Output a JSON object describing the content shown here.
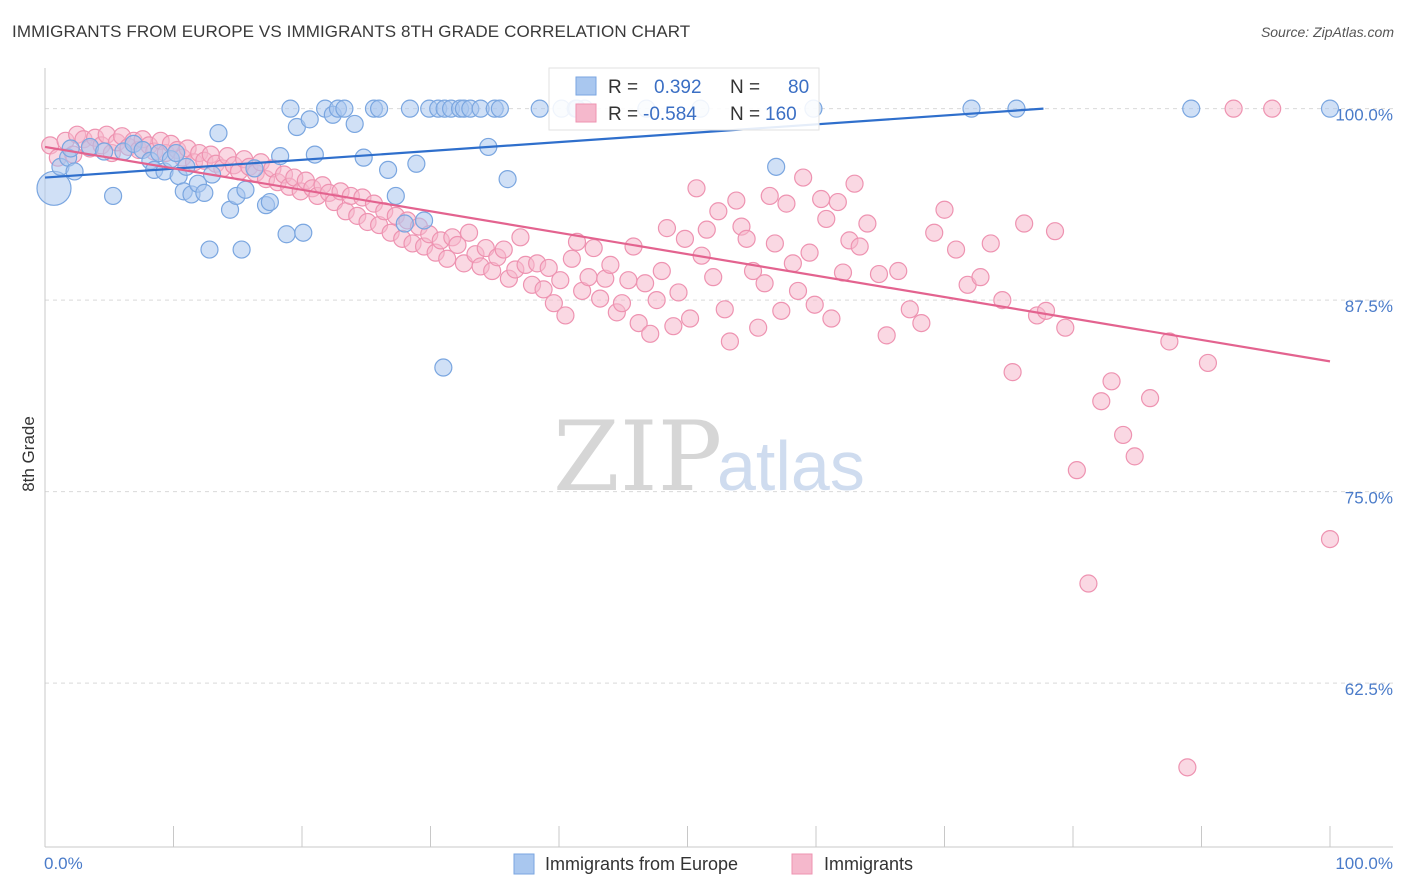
{
  "header": {
    "title": "IMMIGRANTS FROM EUROPE VS IMMIGRANTS 8TH GRADE CORRELATION CHART",
    "source": "Source: ZipAtlas.com"
  },
  "watermark": {
    "zip": "ZIP",
    "atlas": "atlas"
  },
  "colors": {
    "blue_fill": "#a9c7ef",
    "blue_stroke": "#7aa6e0",
    "blue_line": "#2f6fcc",
    "pink_fill": "#f5b8cc",
    "pink_stroke": "#ee93b1",
    "pink_line": "#e3638f",
    "tick_label": "#4a7bc9",
    "grid": "#d9d9d9"
  },
  "stats_box": {
    "rows": [
      {
        "r_label": "R =",
        "r_value": "0.392",
        "n_label": "N =",
        "n_value": "80"
      },
      {
        "r_label": "R =",
        "r_value": "-0.584",
        "n_label": "N =",
        "n_value": "160"
      }
    ]
  },
  "legend": {
    "items": [
      "Immigrants from Europe",
      "Immigrants"
    ]
  },
  "chart_data": {
    "type": "scatter",
    "title": "IMMIGRANTS FROM EUROPE VS IMMIGRANTS 8TH GRADE CORRELATION CHART",
    "ylabel": "8th Grade",
    "xlim": [
      0,
      100
    ],
    "ylim": [
      51.8,
      102
    ],
    "x_tick_labels": [
      "0.0%",
      "100.0%"
    ],
    "y_ticks": [
      100.0,
      87.5,
      75.0,
      62.5
    ],
    "y_tick_labels": [
      "100.0%",
      "87.5%",
      "75.0%",
      "62.5%"
    ],
    "grid": "horizontal dashed",
    "legend_placement": "bottom-center",
    "series": [
      {
        "name": "Immigrants from Europe",
        "r": 0.392,
        "n": 80,
        "trend": {
          "x": [
            0,
            77.7
          ],
          "y": [
            95.5,
            100.0
          ]
        },
        "points": [
          [
            0.7,
            94.8,
            "lg"
          ],
          [
            1.2,
            96.2
          ],
          [
            1.8,
            96.8
          ],
          [
            2.0,
            97.4
          ],
          [
            2.3,
            95.9
          ],
          [
            3.5,
            97.5
          ],
          [
            4.6,
            97.2
          ],
          [
            5.3,
            94.3
          ],
          [
            6.1,
            97.2
          ],
          [
            6.9,
            97.7
          ],
          [
            7.6,
            97.3
          ],
          [
            8.2,
            96.6
          ],
          [
            8.5,
            96.0
          ],
          [
            8.9,
            97.1
          ],
          [
            9.3,
            95.9
          ],
          [
            9.8,
            96.7
          ],
          [
            10.2,
            97.1
          ],
          [
            10.4,
            95.6
          ],
          [
            10.8,
            94.6
          ],
          [
            11.0,
            96.2
          ],
          [
            11.4,
            94.4
          ],
          [
            11.9,
            95.1
          ],
          [
            12.4,
            94.5
          ],
          [
            13.0,
            95.7
          ],
          [
            12.8,
            90.8
          ],
          [
            13.5,
            98.4
          ],
          [
            14.4,
            93.4
          ],
          [
            14.9,
            94.3
          ],
          [
            15.3,
            90.8
          ],
          [
            15.6,
            94.7
          ],
          [
            16.3,
            96.1
          ],
          [
            17.2,
            93.7
          ],
          [
            17.5,
            93.9
          ],
          [
            18.3,
            96.9
          ],
          [
            18.8,
            91.8
          ],
          [
            19.1,
            100.0
          ],
          [
            19.6,
            98.8
          ],
          [
            20.1,
            91.9
          ],
          [
            20.6,
            99.3
          ],
          [
            21.0,
            97.0
          ],
          [
            21.8,
            100.0
          ],
          [
            22.4,
            99.6
          ],
          [
            22.8,
            100.0
          ],
          [
            23.3,
            100.0
          ],
          [
            24.1,
            99.0
          ],
          [
            24.8,
            96.8
          ],
          [
            25.6,
            100.0
          ],
          [
            26.0,
            100.0
          ],
          [
            26.7,
            96.0
          ],
          [
            27.3,
            94.3
          ],
          [
            28.0,
            92.5
          ],
          [
            28.4,
            100.0
          ],
          [
            28.9,
            96.4
          ],
          [
            29.5,
            92.7
          ],
          [
            29.9,
            100.0
          ],
          [
            30.6,
            100.0
          ],
          [
            31.1,
            100.0
          ],
          [
            31.6,
            100.0
          ],
          [
            32.3,
            100.0
          ],
          [
            32.6,
            100.0
          ],
          [
            33.1,
            100.0
          ],
          [
            33.9,
            100.0
          ],
          [
            34.5,
            97.5
          ],
          [
            35.0,
            100.0
          ],
          [
            35.4,
            100.0
          ],
          [
            36.0,
            95.4
          ],
          [
            38.5,
            100.0
          ],
          [
            40.2,
            100.0
          ],
          [
            41.3,
            100.0
          ],
          [
            42.0,
            100.0
          ],
          [
            46.8,
            100.0
          ],
          [
            51.0,
            100.0
          ],
          [
            56.9,
            96.2
          ],
          [
            59.8,
            100.0
          ],
          [
            72.1,
            100.0
          ],
          [
            75.6,
            100.0
          ],
          [
            89.2,
            100.0
          ],
          [
            100.0,
            100.0
          ],
          [
            41.4,
            100.0
          ],
          [
            31.0,
            83.1
          ]
        ]
      },
      {
        "name": "Immigrants",
        "r": -0.584,
        "n": 160,
        "trend": {
          "x": [
            0,
            100
          ],
          "y": [
            97.5,
            83.5
          ]
        },
        "points": [
          [
            0.4,
            97.6
          ],
          [
            1.0,
            96.8
          ],
          [
            1.6,
            97.9
          ],
          [
            2.2,
            97.0
          ],
          [
            2.5,
            98.3
          ],
          [
            3.0,
            98.0
          ],
          [
            3.5,
            97.4
          ],
          [
            3.9,
            98.1
          ],
          [
            4.4,
            97.6
          ],
          [
            4.8,
            98.3
          ],
          [
            5.2,
            97.1
          ],
          [
            5.6,
            97.8
          ],
          [
            6.0,
            98.2
          ],
          [
            6.5,
            97.5
          ],
          [
            6.9,
            97.9
          ],
          [
            7.3,
            97.3
          ],
          [
            7.6,
            98.0
          ],
          [
            8.1,
            97.6
          ],
          [
            8.5,
            97.2
          ],
          [
            9.0,
            97.9
          ],
          [
            9.4,
            97.1
          ],
          [
            9.8,
            97.7
          ],
          [
            10.3,
            97.3
          ],
          [
            10.7,
            96.8
          ],
          [
            11.1,
            97.4
          ],
          [
            11.6,
            96.5
          ],
          [
            12.0,
            97.1
          ],
          [
            12.4,
            96.6
          ],
          [
            12.9,
            97.0
          ],
          [
            13.3,
            96.4
          ],
          [
            13.8,
            96.1
          ],
          [
            14.2,
            96.9
          ],
          [
            14.7,
            96.3
          ],
          [
            15.1,
            95.9
          ],
          [
            15.5,
            96.7
          ],
          [
            15.9,
            96.2
          ],
          [
            16.4,
            95.8
          ],
          [
            16.8,
            96.5
          ],
          [
            17.2,
            95.4
          ],
          [
            17.7,
            96.1
          ],
          [
            18.1,
            95.2
          ],
          [
            18.6,
            95.7
          ],
          [
            19.0,
            94.9
          ],
          [
            19.4,
            95.5
          ],
          [
            19.9,
            94.6
          ],
          [
            20.3,
            95.3
          ],
          [
            20.8,
            94.8
          ],
          [
            21.2,
            94.3
          ],
          [
            21.6,
            95.0
          ],
          [
            22.1,
            94.5
          ],
          [
            22.5,
            93.9
          ],
          [
            23.0,
            94.6
          ],
          [
            23.4,
            93.3
          ],
          [
            23.8,
            94.3
          ],
          [
            24.3,
            93.0
          ],
          [
            24.7,
            94.2
          ],
          [
            25.1,
            92.6
          ],
          [
            25.6,
            93.8
          ],
          [
            26.0,
            92.4
          ],
          [
            26.4,
            93.3
          ],
          [
            26.9,
            91.9
          ],
          [
            27.3,
            93.0
          ],
          [
            27.8,
            91.5
          ],
          [
            28.2,
            92.7
          ],
          [
            28.6,
            91.2
          ],
          [
            29.1,
            92.3
          ],
          [
            29.5,
            91.0
          ],
          [
            29.9,
            91.8
          ],
          [
            30.4,
            90.6
          ],
          [
            30.8,
            91.4
          ],
          [
            31.3,
            90.2
          ],
          [
            31.7,
            91.6
          ],
          [
            32.1,
            91.1
          ],
          [
            32.6,
            89.9
          ],
          [
            33.0,
            91.9
          ],
          [
            33.5,
            90.5
          ],
          [
            33.9,
            89.7
          ],
          [
            34.3,
            90.9
          ],
          [
            34.8,
            89.4
          ],
          [
            35.2,
            90.3
          ],
          [
            35.7,
            90.8
          ],
          [
            36.1,
            88.9
          ],
          [
            36.6,
            89.5
          ],
          [
            37.0,
            91.6
          ],
          [
            37.4,
            89.8
          ],
          [
            37.9,
            88.5
          ],
          [
            38.3,
            89.9
          ],
          [
            38.8,
            88.2
          ],
          [
            39.2,
            89.6
          ],
          [
            39.6,
            87.3
          ],
          [
            40.1,
            88.8
          ],
          [
            40.5,
            86.5
          ],
          [
            41.0,
            90.2
          ],
          [
            41.4,
            91.3
          ],
          [
            41.8,
            88.1
          ],
          [
            42.3,
            89.0
          ],
          [
            42.7,
            90.9
          ],
          [
            43.2,
            87.6
          ],
          [
            43.6,
            88.9
          ],
          [
            44.0,
            89.8
          ],
          [
            44.5,
            86.7
          ],
          [
            44.9,
            87.3
          ],
          [
            45.4,
            88.8
          ],
          [
            45.8,
            91.0
          ],
          [
            46.2,
            86.0
          ],
          [
            46.7,
            88.6
          ],
          [
            47.1,
            85.3
          ],
          [
            47.6,
            87.5
          ],
          [
            48.0,
            89.4
          ],
          [
            48.4,
            92.2
          ],
          [
            48.9,
            85.8
          ],
          [
            49.3,
            88.0
          ],
          [
            49.8,
            91.5
          ],
          [
            50.2,
            86.3
          ],
          [
            50.7,
            94.8
          ],
          [
            51.1,
            90.4
          ],
          [
            51.5,
            92.1
          ],
          [
            52.0,
            89.0
          ],
          [
            52.4,
            93.3
          ],
          [
            52.9,
            86.9
          ],
          [
            53.3,
            84.8
          ],
          [
            53.8,
            94.0
          ],
          [
            54.2,
            92.3
          ],
          [
            54.6,
            91.5
          ],
          [
            55.1,
            89.4
          ],
          [
            55.5,
            85.7
          ],
          [
            56.0,
            88.6
          ],
          [
            56.4,
            94.3
          ],
          [
            56.8,
            91.2
          ],
          [
            57.3,
            86.8
          ],
          [
            57.7,
            93.8
          ],
          [
            58.2,
            89.9
          ],
          [
            58.6,
            88.1
          ],
          [
            59.0,
            95.5
          ],
          [
            59.5,
            90.6
          ],
          [
            59.9,
            87.2
          ],
          [
            60.4,
            94.1
          ],
          [
            60.8,
            92.8
          ],
          [
            61.2,
            86.3
          ],
          [
            61.7,
            93.9
          ],
          [
            62.1,
            89.3
          ],
          [
            62.6,
            91.4
          ],
          [
            63.0,
            95.1
          ],
          [
            63.4,
            91.0
          ],
          [
            64.0,
            92.5
          ],
          [
            64.9,
            89.2
          ],
          [
            65.5,
            85.2
          ],
          [
            66.4,
            89.4
          ],
          [
            67.3,
            86.9
          ],
          [
            68.2,
            86.0
          ],
          [
            69.2,
            91.9
          ],
          [
            70.0,
            93.4
          ],
          [
            70.9,
            90.8
          ],
          [
            71.8,
            88.5
          ],
          [
            72.8,
            89.0
          ],
          [
            73.6,
            91.2
          ],
          [
            74.5,
            87.5
          ],
          [
            75.3,
            82.8
          ],
          [
            76.2,
            92.5
          ],
          [
            77.2,
            86.5
          ],
          [
            77.9,
            86.8
          ],
          [
            78.6,
            92.0
          ],
          [
            79.4,
            85.7
          ],
          [
            80.3,
            76.4
          ],
          [
            81.2,
            69.0
          ],
          [
            82.2,
            80.9
          ],
          [
            83.0,
            82.2
          ],
          [
            83.9,
            78.7
          ],
          [
            84.8,
            77.3
          ],
          [
            86.0,
            81.1
          ],
          [
            87.5,
            84.8
          ],
          [
            88.9,
            57.0
          ],
          [
            90.5,
            83.4
          ],
          [
            92.5,
            100.0
          ],
          [
            95.5,
            100.0
          ],
          [
            100.0,
            71.9
          ]
        ]
      }
    ]
  }
}
